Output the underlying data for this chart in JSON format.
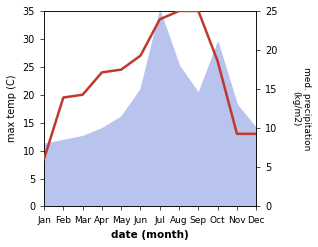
{
  "months": [
    "Jan",
    "Feb",
    "Mar",
    "Apr",
    "May",
    "Jun",
    "Jul",
    "Aug",
    "Sep",
    "Oct",
    "Nov",
    "Dec"
  ],
  "month_positions": [
    0,
    1,
    2,
    3,
    4,
    5,
    6,
    7,
    8,
    9,
    10,
    11
  ],
  "temperature": [
    8.5,
    19.5,
    20.0,
    24.0,
    24.5,
    27.0,
    33.5,
    35.0,
    35.0,
    26.0,
    13.0,
    13.0
  ],
  "precipitation": [
    8.0,
    8.5,
    9.0,
    10.0,
    11.5,
    15.0,
    25.0,
    18.0,
    14.5,
    21.0,
    13.0,
    10.0
  ],
  "temp_color": "#c0392b",
  "precip_color": "#b8c4ee",
  "temp_ylim": [
    0,
    35
  ],
  "precip_ylim": [
    0,
    25
  ],
  "temp_yticks": [
    0,
    5,
    10,
    15,
    20,
    25,
    30,
    35
  ],
  "precip_yticks": [
    0,
    5,
    10,
    15,
    20,
    25
  ],
  "xlabel": "date (month)",
  "ylabel_left": "max temp (C)",
  "ylabel_right": "med. precipitation\n(kg/m2)",
  "bg_color": "#ffffff",
  "fig_width": 3.18,
  "fig_height": 2.47,
  "dpi": 100
}
